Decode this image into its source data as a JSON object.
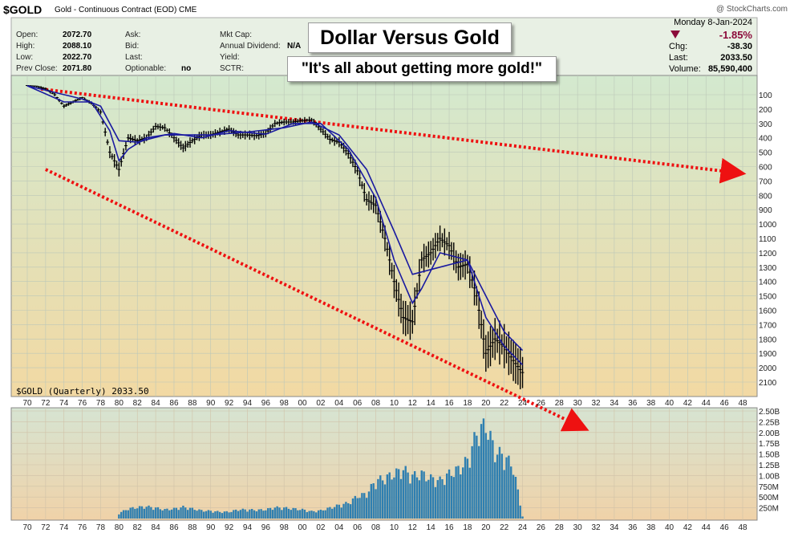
{
  "header": {
    "ticker": "$GOLD",
    "subtitle": "Gold - Continuous Contract (EOD)  CME",
    "brand": "@ StockCharts.com",
    "date_line": "Monday  8-Jan-2024",
    "quote_left": [
      {
        "label": "Open:",
        "value": "2072.70"
      },
      {
        "label": "High:",
        "value": "2088.10"
      },
      {
        "label": "Low:",
        "value": "2022.70"
      },
      {
        "label": "Prev Close:",
        "value": "2071.80"
      }
    ],
    "quote_mid": [
      {
        "label": "Ask:",
        "value": ""
      },
      {
        "label": "Bid:",
        "value": ""
      },
      {
        "label": "Last:",
        "value": ""
      },
      {
        "label": "Optionable:",
        "value": "no"
      }
    ],
    "quote_mid2": [
      {
        "label": "Mkt Cap:",
        "value": ""
      },
      {
        "label": "Annual Dividend:",
        "value": "N/A"
      },
      {
        "label": "Yield:",
        "value": ""
      },
      {
        "label": "SCTR:",
        "value": ""
      }
    ],
    "quote_right": [
      {
        "label": "",
        "value": "-1.85%"
      },
      {
        "label": "Chg:",
        "value": "-38.30"
      },
      {
        "label": "Last:",
        "value": "2033.50"
      },
      {
        "label": "Volume:",
        "value": "85,590,400"
      }
    ],
    "change_color": "#8b0a3a"
  },
  "annotations": {
    "title": "Dollar Versus Gold",
    "subtitle": "\"It's all about getting more gold!\"",
    "caption": "$GOLD (Quarterly) 2033.50",
    "arrow_color": "#ee1111"
  },
  "colors": {
    "price_bars": "#000000",
    "moving_averages": "#1a1aa0",
    "volume_bars": "#2f7fb0",
    "bg_top": "#d3e9cf",
    "bg_bottom": "#f2d9a3"
  },
  "chart_data": {
    "type": "bar",
    "title": "Dollar Versus Gold",
    "x_axis_ticks": [
      "70",
      "72",
      "74",
      "76",
      "78",
      "80",
      "82",
      "84",
      "86",
      "88",
      "90",
      "92",
      "94",
      "96",
      "98",
      "00",
      "02",
      "04",
      "06",
      "08",
      "10",
      "12",
      "14",
      "16",
      "18",
      "20",
      "22",
      "24",
      "26",
      "28",
      "30",
      "32",
      "34",
      "36",
      "38",
      "40",
      "42",
      "44",
      "46",
      "48"
    ],
    "price_axis": {
      "inverted": true,
      "ticks": [
        100,
        200,
        300,
        400,
        500,
        600,
        700,
        800,
        900,
        1000,
        1100,
        1200,
        1300,
        1400,
        1500,
        1600,
        1700,
        1800,
        1900,
        2000,
        2100
      ]
    },
    "volume_axis": {
      "ticks": [
        "250M",
        "500M",
        "750M",
        "1.00B",
        "1.25B",
        "1.50B",
        "1.75B",
        "2.00B",
        "2.25B",
        "2.50B"
      ]
    },
    "price_series": [
      {
        "t": 1970,
        "v": 36
      },
      {
        "t": 1971,
        "v": 40
      },
      {
        "t": 1972,
        "v": 60
      },
      {
        "t": 1973,
        "v": 100
      },
      {
        "t": 1974,
        "v": 180
      },
      {
        "t": 1975,
        "v": 150
      },
      {
        "t": 1976,
        "v": 120
      },
      {
        "t": 1977,
        "v": 160
      },
      {
        "t": 1978,
        "v": 220
      },
      {
        "t": 1979,
        "v": 500
      },
      {
        "t": 1980,
        "v": 620
      },
      {
        "t": 1981,
        "v": 400
      },
      {
        "t": 1982,
        "v": 420
      },
      {
        "t": 1983,
        "v": 400
      },
      {
        "t": 1984,
        "v": 320
      },
      {
        "t": 1985,
        "v": 330
      },
      {
        "t": 1986,
        "v": 400
      },
      {
        "t": 1987,
        "v": 470
      },
      {
        "t": 1988,
        "v": 420
      },
      {
        "t": 1989,
        "v": 380
      },
      {
        "t": 1990,
        "v": 380
      },
      {
        "t": 1991,
        "v": 360
      },
      {
        "t": 1992,
        "v": 340
      },
      {
        "t": 1993,
        "v": 380
      },
      {
        "t": 1994,
        "v": 380
      },
      {
        "t": 1995,
        "v": 385
      },
      {
        "t": 1996,
        "v": 370
      },
      {
        "t": 1997,
        "v": 300
      },
      {
        "t": 1998,
        "v": 290
      },
      {
        "t": 1999,
        "v": 290
      },
      {
        "t": 2000,
        "v": 280
      },
      {
        "t": 2001,
        "v": 275
      },
      {
        "t": 2002,
        "v": 340
      },
      {
        "t": 2003,
        "v": 410
      },
      {
        "t": 2004,
        "v": 430
      },
      {
        "t": 2005,
        "v": 510
      },
      {
        "t": 2006,
        "v": 630
      },
      {
        "t": 2007,
        "v": 830
      },
      {
        "t": 2008,
        "v": 870
      },
      {
        "t": 2009,
        "v": 1100
      },
      {
        "t": 2010,
        "v": 1400
      },
      {
        "t": 2011,
        "v": 1650
      },
      {
        "t": 2012,
        "v": 1680
      },
      {
        "t": 2013,
        "v": 1250
      },
      {
        "t": 2014,
        "v": 1200
      },
      {
        "t": 2015,
        "v": 1100
      },
      {
        "t": 2016,
        "v": 1150
      },
      {
        "t": 2017,
        "v": 1300
      },
      {
        "t": 2018,
        "v": 1280
      },
      {
        "t": 2019,
        "v": 1500
      },
      {
        "t": 2020,
        "v": 1900
      },
      {
        "t": 2021,
        "v": 1800
      },
      {
        "t": 2022,
        "v": 1850
      },
      {
        "t": 2023,
        "v": 1950
      },
      {
        "t": 2024,
        "v": 2033.5
      }
    ],
    "moving_average_fast": [
      {
        "t": 1970,
        "v": 38
      },
      {
        "t": 1974,
        "v": 150
      },
      {
        "t": 1977,
        "v": 150
      },
      {
        "t": 1979,
        "v": 350
      },
      {
        "t": 1980,
        "v": 560
      },
      {
        "t": 1981,
        "v": 480
      },
      {
        "t": 1983,
        "v": 400
      },
      {
        "t": 1986,
        "v": 370
      },
      {
        "t": 1989,
        "v": 400
      },
      {
        "t": 1992,
        "v": 350
      },
      {
        "t": 1996,
        "v": 375
      },
      {
        "t": 1999,
        "v": 300
      },
      {
        "t": 2002,
        "v": 300
      },
      {
        "t": 2005,
        "v": 480
      },
      {
        "t": 2008,
        "v": 820
      },
      {
        "t": 2010,
        "v": 1250
      },
      {
        "t": 2012,
        "v": 1550
      },
      {
        "t": 2013,
        "v": 1450
      },
      {
        "t": 2015,
        "v": 1200
      },
      {
        "t": 2018,
        "v": 1250
      },
      {
        "t": 2020,
        "v": 1650
      },
      {
        "t": 2022,
        "v": 1850
      },
      {
        "t": 2024,
        "v": 1980
      }
    ],
    "moving_average_slow": [
      {
        "t": 1970,
        "v": 38
      },
      {
        "t": 1976,
        "v": 130
      },
      {
        "t": 1978,
        "v": 180
      },
      {
        "t": 1980,
        "v": 420
      },
      {
        "t": 1982,
        "v": 430
      },
      {
        "t": 1985,
        "v": 380
      },
      {
        "t": 1990,
        "v": 380
      },
      {
        "t": 1994,
        "v": 360
      },
      {
        "t": 1998,
        "v": 330
      },
      {
        "t": 2001,
        "v": 290
      },
      {
        "t": 2004,
        "v": 380
      },
      {
        "t": 2007,
        "v": 620
      },
      {
        "t": 2010,
        "v": 1050
      },
      {
        "t": 2012,
        "v": 1350
      },
      {
        "t": 2015,
        "v": 1300
      },
      {
        "t": 2018,
        "v": 1250
      },
      {
        "t": 2020,
        "v": 1500
      },
      {
        "t": 2022,
        "v": 1750
      },
      {
        "t": 2024,
        "v": 1880
      }
    ],
    "volume_series": [
      {
        "t": 1980,
        "v": 0.12
      },
      {
        "t": 1981,
        "v": 0.22
      },
      {
        "t": 1982,
        "v": 0.25
      },
      {
        "t": 1983,
        "v": 0.27
      },
      {
        "t": 1984,
        "v": 0.24
      },
      {
        "t": 1985,
        "v": 0.2
      },
      {
        "t": 1986,
        "v": 0.22
      },
      {
        "t": 1987,
        "v": 0.26
      },
      {
        "t": 1988,
        "v": 0.22
      },
      {
        "t": 1989,
        "v": 0.18
      },
      {
        "t": 1990,
        "v": 0.17
      },
      {
        "t": 1991,
        "v": 0.15
      },
      {
        "t": 1992,
        "v": 0.15
      },
      {
        "t": 1993,
        "v": 0.2
      },
      {
        "t": 1994,
        "v": 0.2
      },
      {
        "t": 1995,
        "v": 0.19
      },
      {
        "t": 1996,
        "v": 0.2
      },
      {
        "t": 1997,
        "v": 0.25
      },
      {
        "t": 1998,
        "v": 0.24
      },
      {
        "t": 1999,
        "v": 0.22
      },
      {
        "t": 2000,
        "v": 0.2
      },
      {
        "t": 2001,
        "v": 0.16
      },
      {
        "t": 2002,
        "v": 0.18
      },
      {
        "t": 2003,
        "v": 0.24
      },
      {
        "t": 2004,
        "v": 0.3
      },
      {
        "t": 2005,
        "v": 0.35
      },
      {
        "t": 2006,
        "v": 0.5
      },
      {
        "t": 2007,
        "v": 0.55
      },
      {
        "t": 2008,
        "v": 0.85
      },
      {
        "t": 2009,
        "v": 0.9
      },
      {
        "t": 2010,
        "v": 1.0
      },
      {
        "t": 2011,
        "v": 1.1
      },
      {
        "t": 2012,
        "v": 0.95
      },
      {
        "t": 2013,
        "v": 1.0
      },
      {
        "t": 2014,
        "v": 0.9
      },
      {
        "t": 2015,
        "v": 0.85
      },
      {
        "t": 2016,
        "v": 1.0
      },
      {
        "t": 2017,
        "v": 1.1
      },
      {
        "t": 2018,
        "v": 1.3
      },
      {
        "t": 2019,
        "v": 1.9
      },
      {
        "t": 2020,
        "v": 2.1
      },
      {
        "t": 2021,
        "v": 1.5
      },
      {
        "t": 2022,
        "v": 1.4
      },
      {
        "t": 2023,
        "v": 1.15
      },
      {
        "t": 2024,
        "v": 0.05
      }
    ],
    "trendlines": [
      {
        "from": {
          "t": 1971.5,
          "v": 60
        },
        "to": {
          "t": 2047,
          "v": 640
        }
      },
      {
        "from": {
          "t": 1972,
          "v": 620
        },
        "to": {
          "t": 2030,
          "v": 2400
        }
      }
    ]
  }
}
